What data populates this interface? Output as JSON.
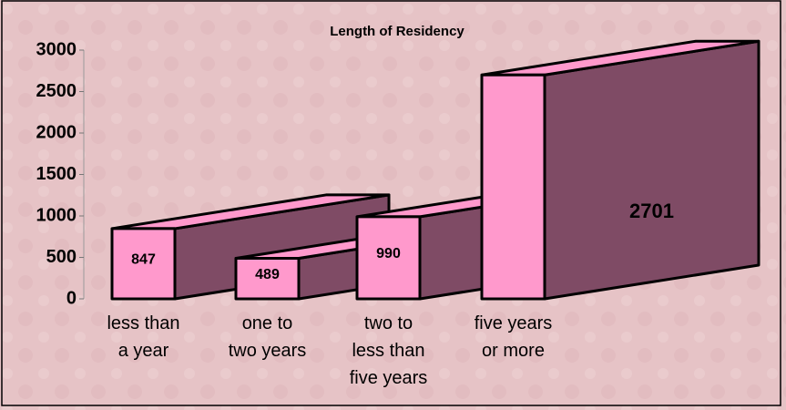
{
  "chart_data": {
    "type": "bar3d",
    "title": "Length of Residency",
    "categories": [
      "less than\na year",
      "one to\ntwo years",
      "two to\nless than\nfive years",
      "five years\nor more"
    ],
    "values": [
      847,
      489,
      990,
      2701
    ],
    "color": "#ff99cc",
    "side_color": "#7f4b65",
    "ylim": [
      0,
      3000
    ],
    "yticks": [
      0,
      500,
      1000,
      1500,
      2000,
      2500,
      3000
    ]
  }
}
